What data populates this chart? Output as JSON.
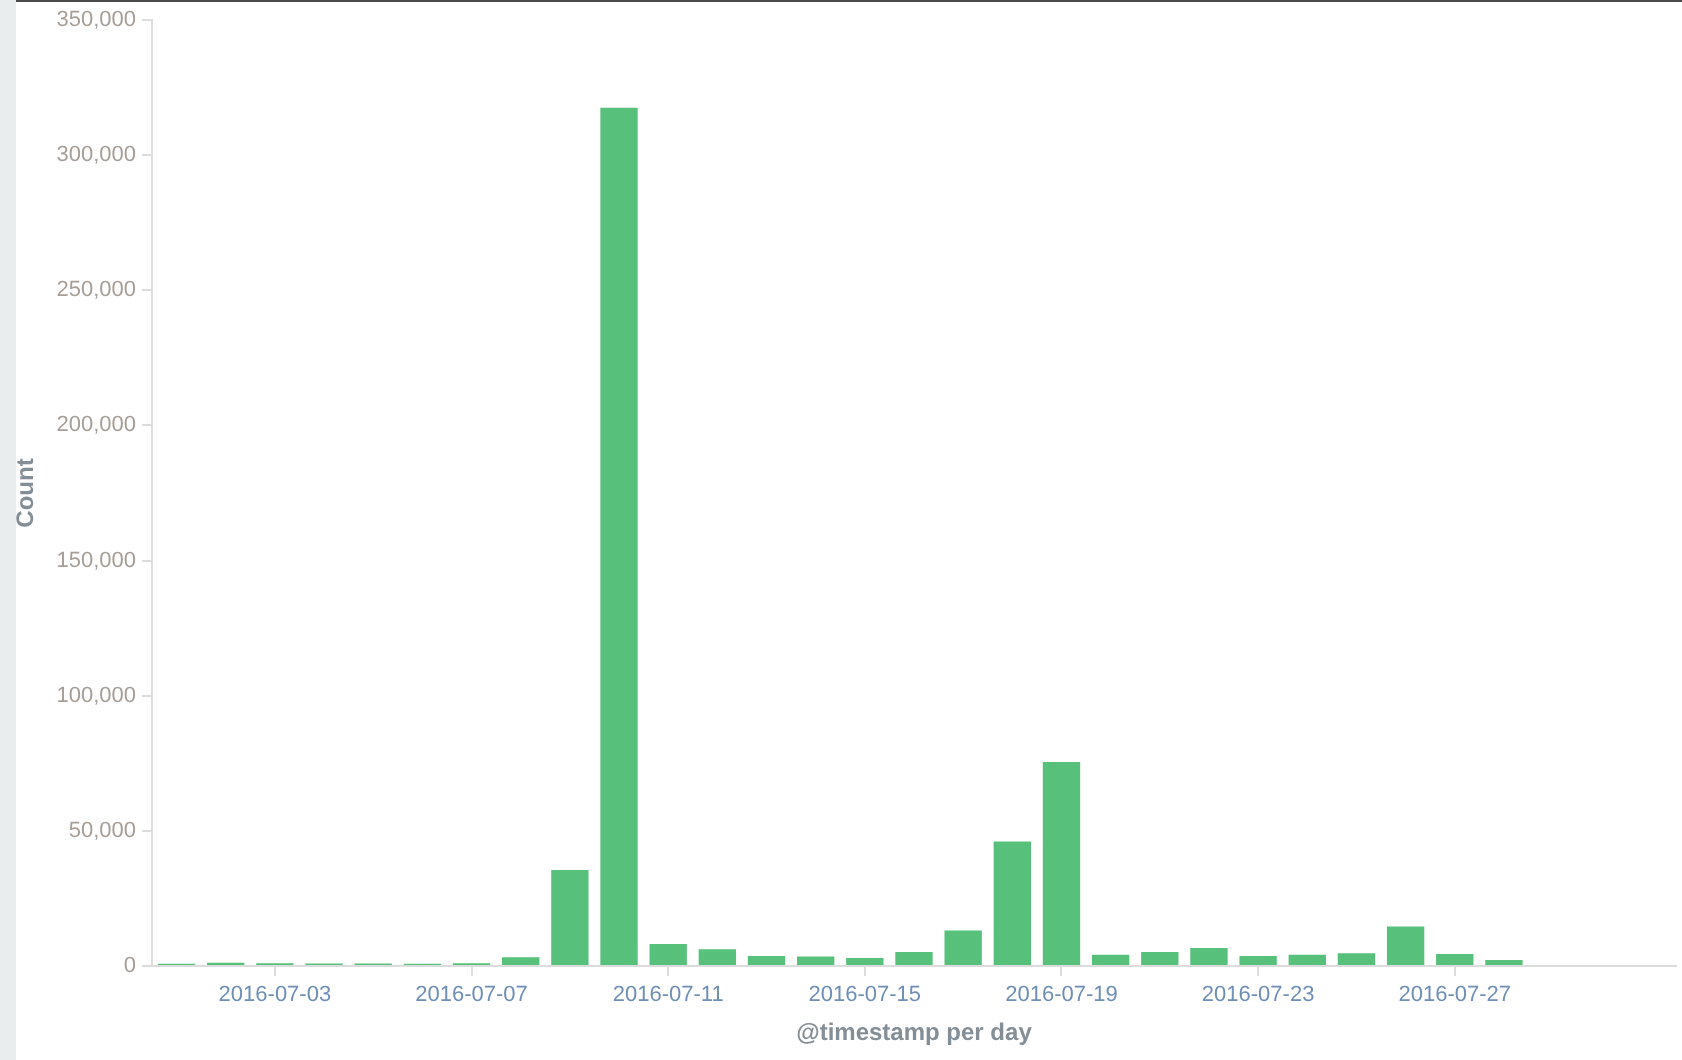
{
  "chart_data": {
    "type": "bar",
    "xlabel": "@timestamp per day",
    "ylabel": "Count",
    "color": "#57c17b",
    "x": [
      "2016-07-01",
      "2016-07-02",
      "2016-07-03",
      "2016-07-04",
      "2016-07-05",
      "2016-07-06",
      "2016-07-07",
      "2016-07-08",
      "2016-07-09",
      "2016-07-10",
      "2016-07-11",
      "2016-07-12",
      "2016-07-13",
      "2016-07-14",
      "2016-07-15",
      "2016-07-16",
      "2016-07-17",
      "2016-07-18",
      "2016-07-19",
      "2016-07-20",
      "2016-07-21",
      "2016-07-22",
      "2016-07-23",
      "2016-07-24",
      "2016-07-25",
      "2016-07-26",
      "2016-07-27",
      "2016-07-28"
    ],
    "values": [
      800,
      1200,
      1000,
      900,
      900,
      800,
      1000,
      3200,
      35500,
      317500,
      8100,
      6200,
      3700,
      3500,
      3000,
      5200,
      13100,
      46100,
      75500,
      4200,
      5200,
      6700,
      3700,
      4200,
      4700,
      14600,
      4400,
      2200
    ],
    "xlim": [
      "2016-06-30T12:00",
      "2016-07-31T12:00"
    ],
    "xticks": [
      "2016-07-03",
      "2016-07-07",
      "2016-07-11",
      "2016-07-15",
      "2016-07-19",
      "2016-07-23",
      "2016-07-27"
    ],
    "ylim": [
      0,
      350000
    ],
    "yticks": [
      0,
      {
        "value": 50000,
        "label": "50,000"
      },
      {
        "value": 100000,
        "label": "100,000"
      },
      {
        "value": 150000,
        "label": "150,000"
      },
      {
        "value": 200000,
        "label": "200,000"
      },
      {
        "value": 250000,
        "label": "250,000"
      },
      {
        "value": 300000,
        "label": "300,000"
      },
      {
        "value": 350000,
        "label": "350,000"
      }
    ]
  }
}
